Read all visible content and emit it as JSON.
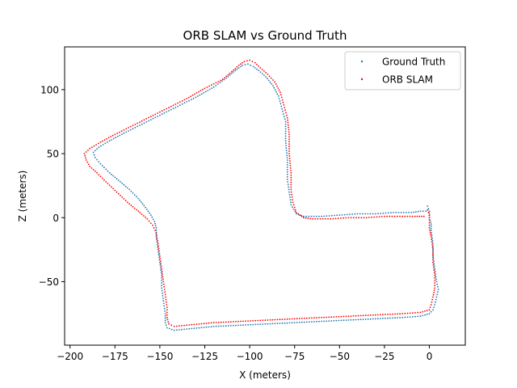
{
  "chart_data": {
    "type": "scatter",
    "title": "ORB SLAM vs Ground Truth",
    "xlabel": "X (meters)",
    "ylabel": "Z (meters)",
    "xlim": [
      -203,
      20
    ],
    "ylim": [
      -99.6,
      133.4
    ],
    "xticks": [
      -200,
      -175,
      -150,
      -125,
      -100,
      -75,
      -50,
      -25,
      0
    ],
    "xtick_labels": [
      "−200",
      "−175",
      "−150",
      "−125",
      "−100",
      "−75",
      "−50",
      "−25",
      "0"
    ],
    "yticks": [
      -50,
      0,
      50,
      100
    ],
    "ytick_labels": [
      "−50",
      "0",
      "50",
      "100"
    ],
    "grid": false,
    "legend_position": "upper-right",
    "series": [
      {
        "name": "Ground Truth",
        "color": "#1f77b4",
        "points": [
          [
            -1,
            9
          ],
          [
            0,
            5
          ],
          [
            0,
            0
          ],
          [
            1,
            -5
          ],
          [
            1,
            -10
          ],
          [
            2,
            -20
          ],
          [
            2,
            -30
          ],
          [
            3,
            -40
          ],
          [
            4,
            -50
          ],
          [
            5,
            -56
          ],
          [
            4,
            -62
          ],
          [
            3,
            -68
          ],
          [
            2,
            -72
          ],
          [
            0,
            -75
          ],
          [
            -5,
            -77
          ],
          [
            -15,
            -78
          ],
          [
            -30,
            -79
          ],
          [
            -45,
            -80
          ],
          [
            -60,
            -81
          ],
          [
            -75,
            -82
          ],
          [
            -90,
            -83
          ],
          [
            -105,
            -84
          ],
          [
            -120,
            -85
          ],
          [
            -135,
            -87
          ],
          [
            -142,
            -88
          ],
          [
            -146,
            -86
          ],
          [
            -147,
            -82
          ],
          [
            -147,
            -75
          ],
          [
            -148,
            -65
          ],
          [
            -149,
            -55
          ],
          [
            -149,
            -45
          ],
          [
            -150,
            -35
          ],
          [
            -151,
            -25
          ],
          [
            -152,
            -15
          ],
          [
            -152,
            -8
          ],
          [
            -153,
            -3
          ],
          [
            -155,
            2
          ],
          [
            -158,
            8
          ],
          [
            -162,
            15
          ],
          [
            -167,
            22
          ],
          [
            -172,
            28
          ],
          [
            -178,
            35
          ],
          [
            -183,
            42
          ],
          [
            -186,
            47
          ],
          [
            -187,
            51
          ],
          [
            -184,
            55
          ],
          [
            -178,
            60
          ],
          [
            -170,
            66
          ],
          [
            -160,
            73
          ],
          [
            -150,
            80
          ],
          [
            -140,
            87
          ],
          [
            -130,
            94
          ],
          [
            -120,
            102
          ],
          [
            -113,
            109
          ],
          [
            -108,
            115
          ],
          [
            -104,
            119
          ],
          [
            -101,
            120
          ],
          [
            -98,
            118
          ],
          [
            -95,
            115
          ],
          [
            -91,
            110
          ],
          [
            -87,
            103
          ],
          [
            -84,
            95
          ],
          [
            -82,
            85
          ],
          [
            -80,
            75
          ],
          [
            -80,
            60
          ],
          [
            -79,
            45
          ],
          [
            -79,
            30
          ],
          [
            -78,
            20
          ],
          [
            -77,
            10
          ],
          [
            -74,
            3
          ],
          [
            -70,
            1
          ],
          [
            -60,
            1
          ],
          [
            -50,
            2
          ],
          [
            -40,
            3
          ],
          [
            -30,
            3
          ],
          [
            -20,
            4
          ],
          [
            -10,
            4
          ],
          [
            -5,
            5
          ],
          [
            -2,
            5
          ]
        ]
      },
      {
        "name": "ORB SLAM",
        "color": "#ff0000",
        "points": [
          [
            -1,
            6
          ],
          [
            0,
            2
          ],
          [
            0,
            -2
          ],
          [
            0,
            -8
          ],
          [
            1,
            -15
          ],
          [
            2,
            -25
          ],
          [
            2,
            -35
          ],
          [
            3,
            -45
          ],
          [
            3,
            -55
          ],
          [
            2,
            -62
          ],
          [
            1,
            -68
          ],
          [
            0,
            -72
          ],
          [
            -5,
            -74
          ],
          [
            -15,
            -75
          ],
          [
            -30,
            -76
          ],
          [
            -45,
            -77
          ],
          [
            -60,
            -78
          ],
          [
            -75,
            -79
          ],
          [
            -90,
            -80
          ],
          [
            -105,
            -81
          ],
          [
            -120,
            -82
          ],
          [
            -135,
            -84
          ],
          [
            -142,
            -85
          ],
          [
            -145,
            -83
          ],
          [
            -146,
            -78
          ],
          [
            -146,
            -70
          ],
          [
            -147,
            -60
          ],
          [
            -148,
            -50
          ],
          [
            -149,
            -40
          ],
          [
            -150,
            -30
          ],
          [
            -151,
            -20
          ],
          [
            -152,
            -12
          ],
          [
            -154,
            -6
          ],
          [
            -157,
            -1
          ],
          [
            -162,
            5
          ],
          [
            -168,
            12
          ],
          [
            -174,
            20
          ],
          [
            -180,
            28
          ],
          [
            -185,
            35
          ],
          [
            -189,
            40
          ],
          [
            -191,
            45
          ],
          [
            -192,
            50
          ],
          [
            -189,
            54
          ],
          [
            -183,
            59
          ],
          [
            -175,
            65
          ],
          [
            -165,
            72
          ],
          [
            -155,
            79
          ],
          [
            -145,
            86
          ],
          [
            -135,
            93
          ],
          [
            -125,
            101
          ],
          [
            -115,
            108
          ],
          [
            -110,
            114
          ],
          [
            -106,
            119
          ],
          [
            -103,
            122
          ],
          [
            -100,
            123
          ],
          [
            -97,
            121
          ],
          [
            -94,
            117
          ],
          [
            -90,
            112
          ],
          [
            -86,
            106
          ],
          [
            -83,
            98
          ],
          [
            -81,
            88
          ],
          [
            -79,
            78
          ],
          [
            -78,
            65
          ],
          [
            -78,
            50
          ],
          [
            -77,
            35
          ],
          [
            -77,
            22
          ],
          [
            -76,
            12
          ],
          [
            -74,
            4
          ],
          [
            -70,
            0
          ],
          [
            -65,
            -1
          ],
          [
            -55,
            -1
          ],
          [
            -45,
            0
          ],
          [
            -35,
            0
          ],
          [
            -25,
            1
          ],
          [
            -15,
            1
          ],
          [
            -8,
            1
          ],
          [
            -3,
            1
          ]
        ]
      }
    ]
  }
}
